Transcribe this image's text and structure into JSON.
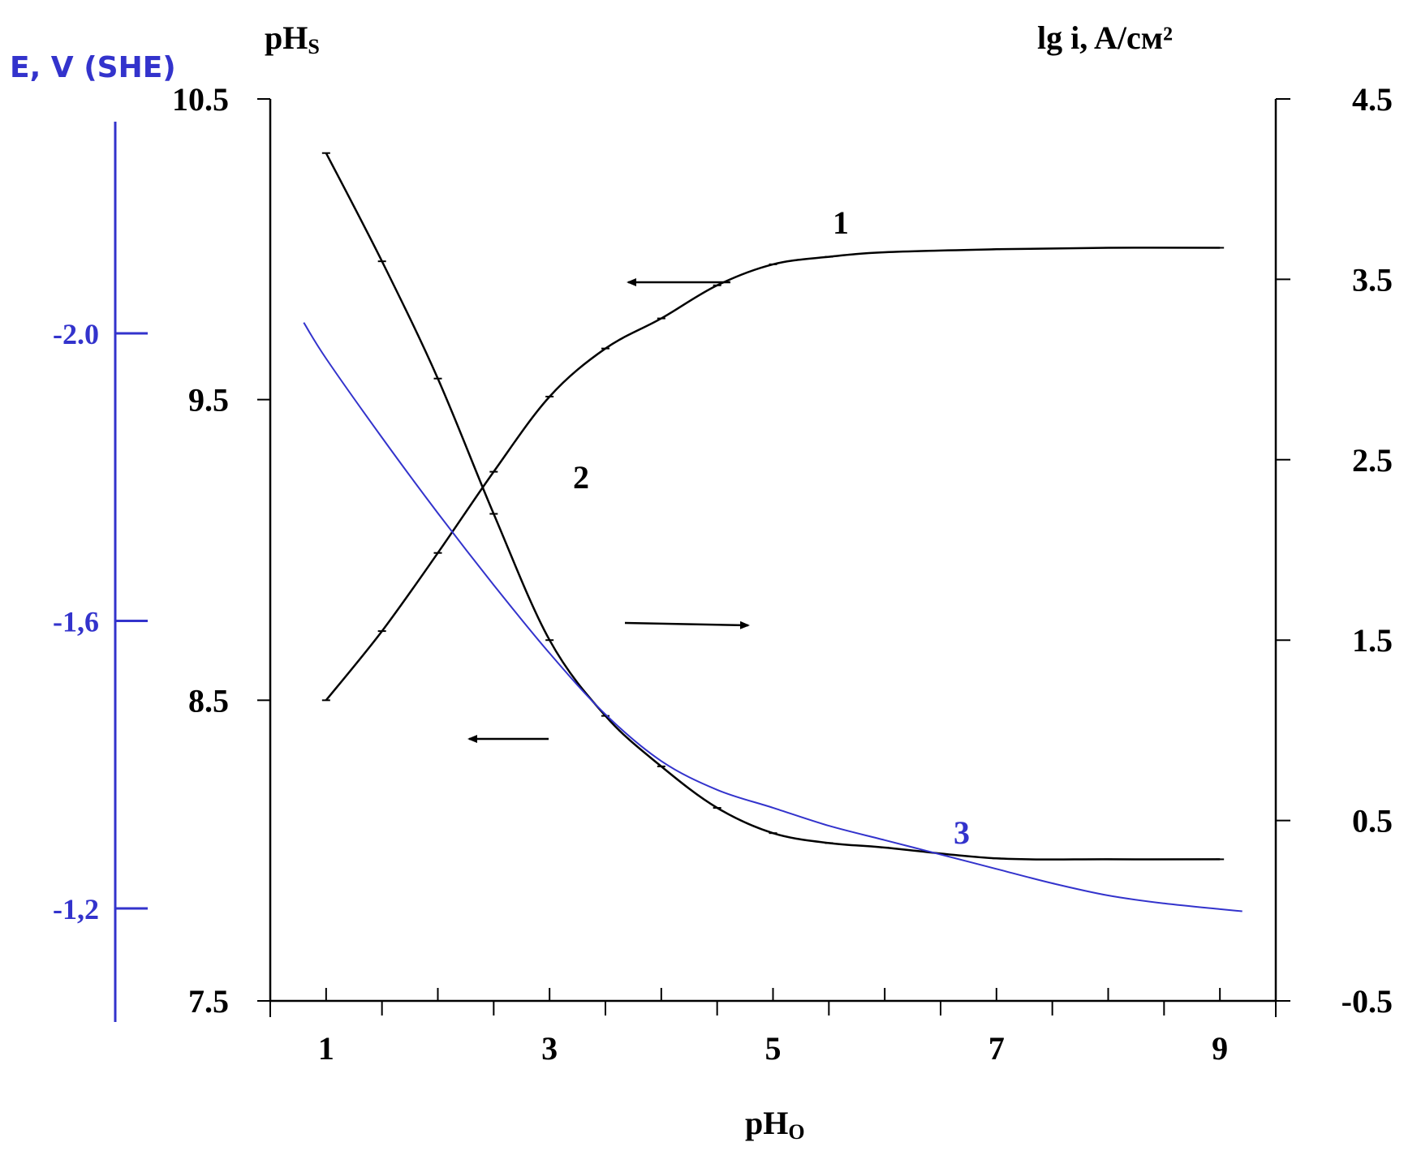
{
  "chart_data": {
    "type": "line",
    "x_label": "pH",
    "x_label_sub": "O",
    "x_ticks": [
      "1",
      "3",
      "5",
      "7",
      "9"
    ],
    "x_range": [
      0.5,
      9.5
    ],
    "left_axis": {
      "label": "pH",
      "label_sub": "S",
      "range": [
        7.5,
        10.5
      ],
      "ticks": [
        "10.5",
        "9.5",
        "8.5",
        "7.5"
      ]
    },
    "right_axis": {
      "label": "lg i, A/см²",
      "range": [
        -0.5,
        4.5
      ],
      "ticks": [
        "4.5",
        "3.5",
        "2.5",
        "1.5",
        "0.5",
        "-0.5"
      ]
    },
    "potential_axis": {
      "label": "E, V (SHE)",
      "ticks": [
        "-2.0",
        "-1,6",
        "-1,2"
      ],
      "tick_values": [
        -2.0,
        -1.6,
        -1.2
      ],
      "color": "#3333cc"
    },
    "series": [
      {
        "label": "1",
        "axis": "left",
        "color": "#000000",
        "x": [
          1.0,
          1.5,
          2.0,
          2.5,
          3.0,
          3.5,
          4.0,
          4.5,
          5.0,
          5.5,
          6.0,
          7.0,
          8.0,
          9.0
        ],
        "y": [
          8.5,
          8.73,
          8.99,
          9.26,
          9.51,
          9.67,
          9.77,
          9.88,
          9.95,
          9.975,
          9.99,
          10.0,
          10.005,
          10.005
        ]
      },
      {
        "label": "2",
        "axis": "right",
        "color": "#000000",
        "x": [
          1.0,
          1.5,
          2.0,
          2.5,
          3.0,
          3.5,
          4.0,
          4.5,
          5.0,
          5.5,
          6.0,
          7.0,
          8.0,
          9.0
        ],
        "y": [
          4.2,
          3.6,
          2.95,
          2.2,
          1.5,
          1.08,
          0.8,
          0.57,
          0.43,
          0.375,
          0.35,
          0.29,
          0.285,
          0.285
        ]
      },
      {
        "label": "3",
        "axis": "potential",
        "color": "#3333cc",
        "x": [
          0.8,
          1.0,
          1.5,
          2.0,
          2.5,
          3.0,
          3.5,
          4.0,
          4.5,
          5.0,
          5.5,
          6.0,
          6.5,
          7.0,
          7.5,
          8.0,
          8.5,
          9.0,
          9.2
        ],
        "y": [
          -2.015,
          -1.965,
          -1.855,
          -1.75,
          -1.65,
          -1.555,
          -1.47,
          -1.405,
          -1.365,
          -1.34,
          -1.315,
          -1.295,
          -1.275,
          -1.255,
          -1.235,
          -1.218,
          -1.207,
          -1.199,
          -1.196
        ]
      }
    ],
    "annotations": [
      {
        "text": "1",
        "series": "1"
      },
      {
        "text": "2",
        "series": "2"
      },
      {
        "text": "3",
        "series": "3"
      }
    ]
  }
}
